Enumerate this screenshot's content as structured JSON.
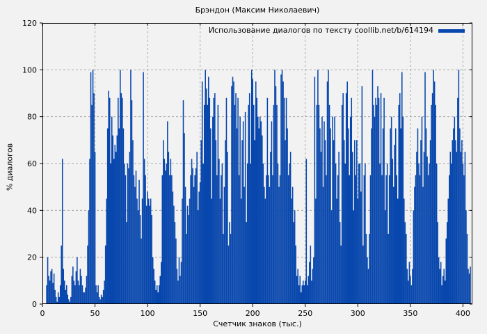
{
  "colors": {
    "bar": "#0847ad",
    "background": "#f2f2f2",
    "grid": "#a8a8a8",
    "axis": "#000000"
  },
  "chart_data": {
    "type": "bar",
    "title": "Брэндон (Максим Николаевич)",
    "xlabel": "Счетчик знаков (тыс.)",
    "ylabel": "% диалогов",
    "legend": {
      "label": "Использование диалогов по тексту coollib.net/b/614194",
      "color": "#0847ad",
      "position": "top-right"
    },
    "xlim": [
      0,
      409
    ],
    "ylim": [
      0,
      120
    ],
    "xticks": [
      0,
      50,
      100,
      150,
      200,
      250,
      300,
      350,
      400
    ],
    "yticks": [
      0,
      20,
      40,
      60,
      80,
      100,
      120
    ],
    "grid": true,
    "x_start": 0,
    "x_step": 1,
    "values": [
      0,
      0,
      0,
      0,
      8,
      20,
      12,
      10,
      14,
      15,
      9,
      13,
      6,
      3,
      1,
      5,
      3,
      8,
      25,
      62,
      15,
      10,
      6,
      8,
      4,
      2,
      1,
      3,
      12,
      16,
      10,
      8,
      14,
      20,
      10,
      8,
      15,
      12,
      8,
      5,
      5,
      7,
      12,
      25,
      40,
      62,
      99,
      85,
      100,
      90,
      65,
      8,
      5,
      8,
      3,
      2,
      4,
      3,
      6,
      10,
      25,
      45,
      75,
      91,
      88,
      60,
      80,
      72,
      62,
      68,
      65,
      72,
      88,
      75,
      100,
      90,
      88,
      75,
      60,
      55,
      35,
      60,
      58,
      65,
      100,
      87,
      70,
      55,
      50,
      57,
      45,
      40,
      53,
      38,
      28,
      45,
      99,
      62,
      55,
      42,
      48,
      45,
      42,
      45,
      38,
      20,
      15,
      10,
      6,
      8,
      5,
      8,
      12,
      18,
      55,
      70,
      62,
      57,
      60,
      78,
      65,
      55,
      62,
      55,
      48,
      42,
      35,
      28,
      15,
      10,
      20,
      12,
      18,
      45,
      87,
      73,
      50,
      30,
      42,
      38,
      45,
      55,
      62,
      58,
      50,
      55,
      58,
      65,
      40,
      48,
      52,
      70,
      95,
      60,
      85,
      100,
      92,
      85,
      97,
      88,
      75,
      45,
      80,
      88,
      90,
      70,
      55,
      85,
      62,
      45,
      55,
      60,
      30,
      50,
      70,
      88,
      65,
      25,
      35,
      30,
      93,
      97,
      95,
      85,
      90,
      75,
      88,
      55,
      80,
      45,
      70,
      78,
      50,
      82,
      35,
      60,
      85,
      90,
      60,
      100,
      96,
      85,
      70,
      95,
      88,
      80,
      75,
      80,
      78,
      72,
      60,
      50,
      45,
      55,
      88,
      55,
      50,
      65,
      78,
      55,
      85,
      100,
      93,
      85,
      60,
      50,
      55,
      98,
      100,
      95,
      88,
      70,
      88,
      75,
      55,
      60,
      65,
      45,
      50,
      35,
      40,
      25,
      12,
      15,
      8,
      12,
      5,
      8,
      10,
      8,
      10,
      62,
      8,
      12,
      18,
      25,
      10,
      15,
      20,
      97,
      45,
      85,
      100,
      85,
      75,
      65,
      80,
      50,
      78,
      70,
      55,
      95,
      100,
      85,
      75,
      40,
      80,
      70,
      80,
      60,
      45,
      55,
      65,
      35,
      25,
      85,
      90,
      70,
      60,
      90,
      95,
      75,
      55,
      80,
      88,
      65,
      40,
      70,
      55,
      70,
      45,
      60,
      60,
      48,
      93,
      25,
      55,
      60,
      30,
      20,
      15,
      30,
      55,
      75,
      100,
      85,
      80,
      88,
      85,
      93,
      88,
      60,
      90,
      55,
      75,
      88,
      40,
      55,
      60,
      30,
      55,
      75,
      80,
      62,
      50,
      68,
      75,
      55,
      45,
      85,
      90,
      75,
      99,
      80,
      45,
      35,
      30,
      15,
      10,
      18,
      12,
      8,
      15,
      40,
      50,
      55,
      65,
      75,
      60,
      55,
      70,
      80,
      50,
      65,
      99,
      75,
      63,
      55,
      60,
      70,
      85,
      90,
      100,
      95,
      85,
      60,
      35,
      20,
      15,
      18,
      8,
      12,
      15,
      10,
      28,
      35,
      45,
      55,
      65,
      60,
      70,
      75,
      80,
      70,
      65,
      88,
      100,
      75,
      65,
      70,
      60,
      55,
      65,
      40,
      30,
      15,
      13,
      16
    ]
  }
}
